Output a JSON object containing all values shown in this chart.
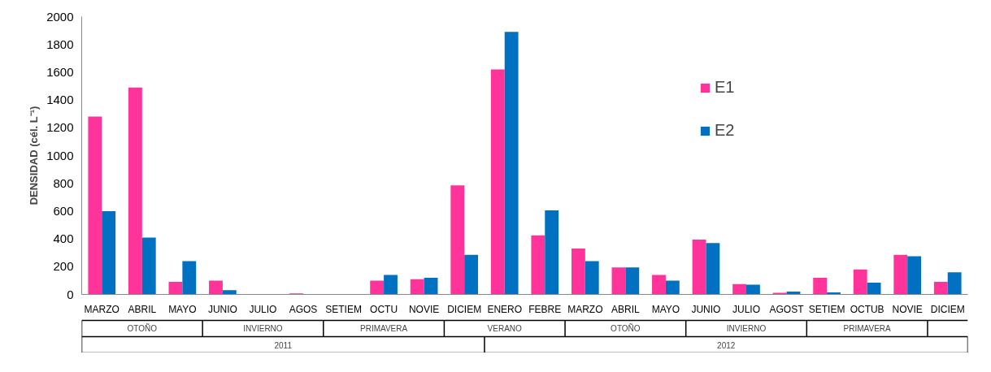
{
  "chart_data": {
    "type": "bar",
    "ylabel": "DENSIDAD (cél. L⁻¹)",
    "categories": [
      "MARZO",
      "ABRIL",
      "MAYO",
      "JUNIO",
      "JULIO",
      "AGOS",
      "SETIEM",
      "OCTU",
      "NOVIE",
      "DICIEM",
      "ENERO",
      "FEBRE",
      "MARZO",
      "ABRIL",
      "MAYO",
      "JUNIO",
      "JULIO",
      "AGOST",
      "SETIEM",
      "OCTUB",
      "NOVIE",
      "DICIEM"
    ],
    "series": [
      {
        "name": "E1",
        "color": "#ff3399",
        "values": [
          1280,
          1490,
          90,
          100,
          0,
          8,
          null,
          100,
          110,
          785,
          1620,
          425,
          330,
          195,
          140,
          395,
          75,
          12,
          120,
          180,
          285,
          90
        ]
      },
      {
        "name": "E2",
        "color": "#0070c0",
        "values": [
          600,
          410,
          240,
          30,
          0,
          null,
          null,
          140,
          120,
          285,
          1890,
          605,
          240,
          195,
          100,
          370,
          70,
          20,
          15,
          85,
          275,
          160
        ]
      }
    ],
    "ylim": [
      0,
      2000
    ],
    "yticks": [
      0,
      200,
      400,
      600,
      800,
      1000,
      1200,
      1400,
      1600,
      1800,
      2000
    ],
    "grid": false,
    "legend": "top right",
    "annotations": [
      "OTOÑO",
      "INVIERNO",
      "PRIMAVERA",
      "VERANO",
      "OTOÑO",
      "INVIERNO",
      "PRIMAVERA",
      "2011",
      "2012"
    ]
  }
}
